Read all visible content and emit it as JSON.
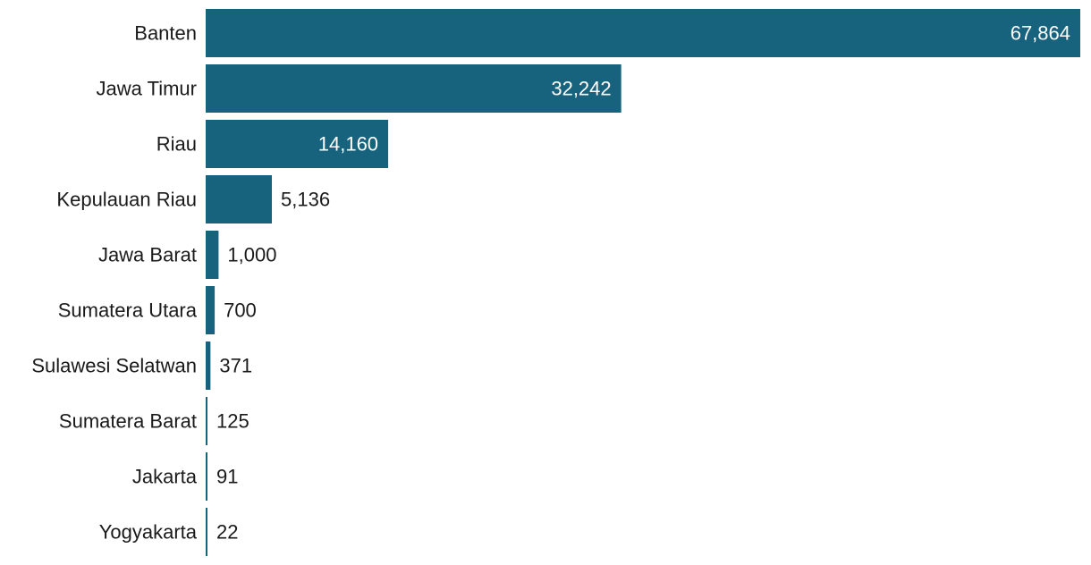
{
  "chart_data": {
    "type": "bar",
    "orientation": "horizontal",
    "title": "",
    "xlabel": "",
    "ylabel": "",
    "categories": [
      "Banten",
      "Jawa Timur",
      "Riau",
      "Kepulauan Riau",
      "Jawa Barat",
      "Sumatera Utara",
      "Sulawesi Selatwan",
      "Sumatera Barat",
      "Jakarta",
      "Yogyakarta"
    ],
    "values": [
      67864,
      32242,
      14160,
      5136,
      1000,
      700,
      371,
      125,
      91,
      22
    ],
    "value_labels": [
      "67,864",
      "32,242",
      "14,160",
      "5,136",
      "1,000",
      "700",
      "371",
      "125",
      "91",
      "22"
    ],
    "xlim": [
      0,
      67864
    ],
    "grid": false,
    "legend": "none",
    "colors": {
      "bar": "#17627c",
      "label_inside": "#ffffff",
      "label_outside": "#1a1a1a",
      "category_text": "#1a1a1a"
    }
  }
}
